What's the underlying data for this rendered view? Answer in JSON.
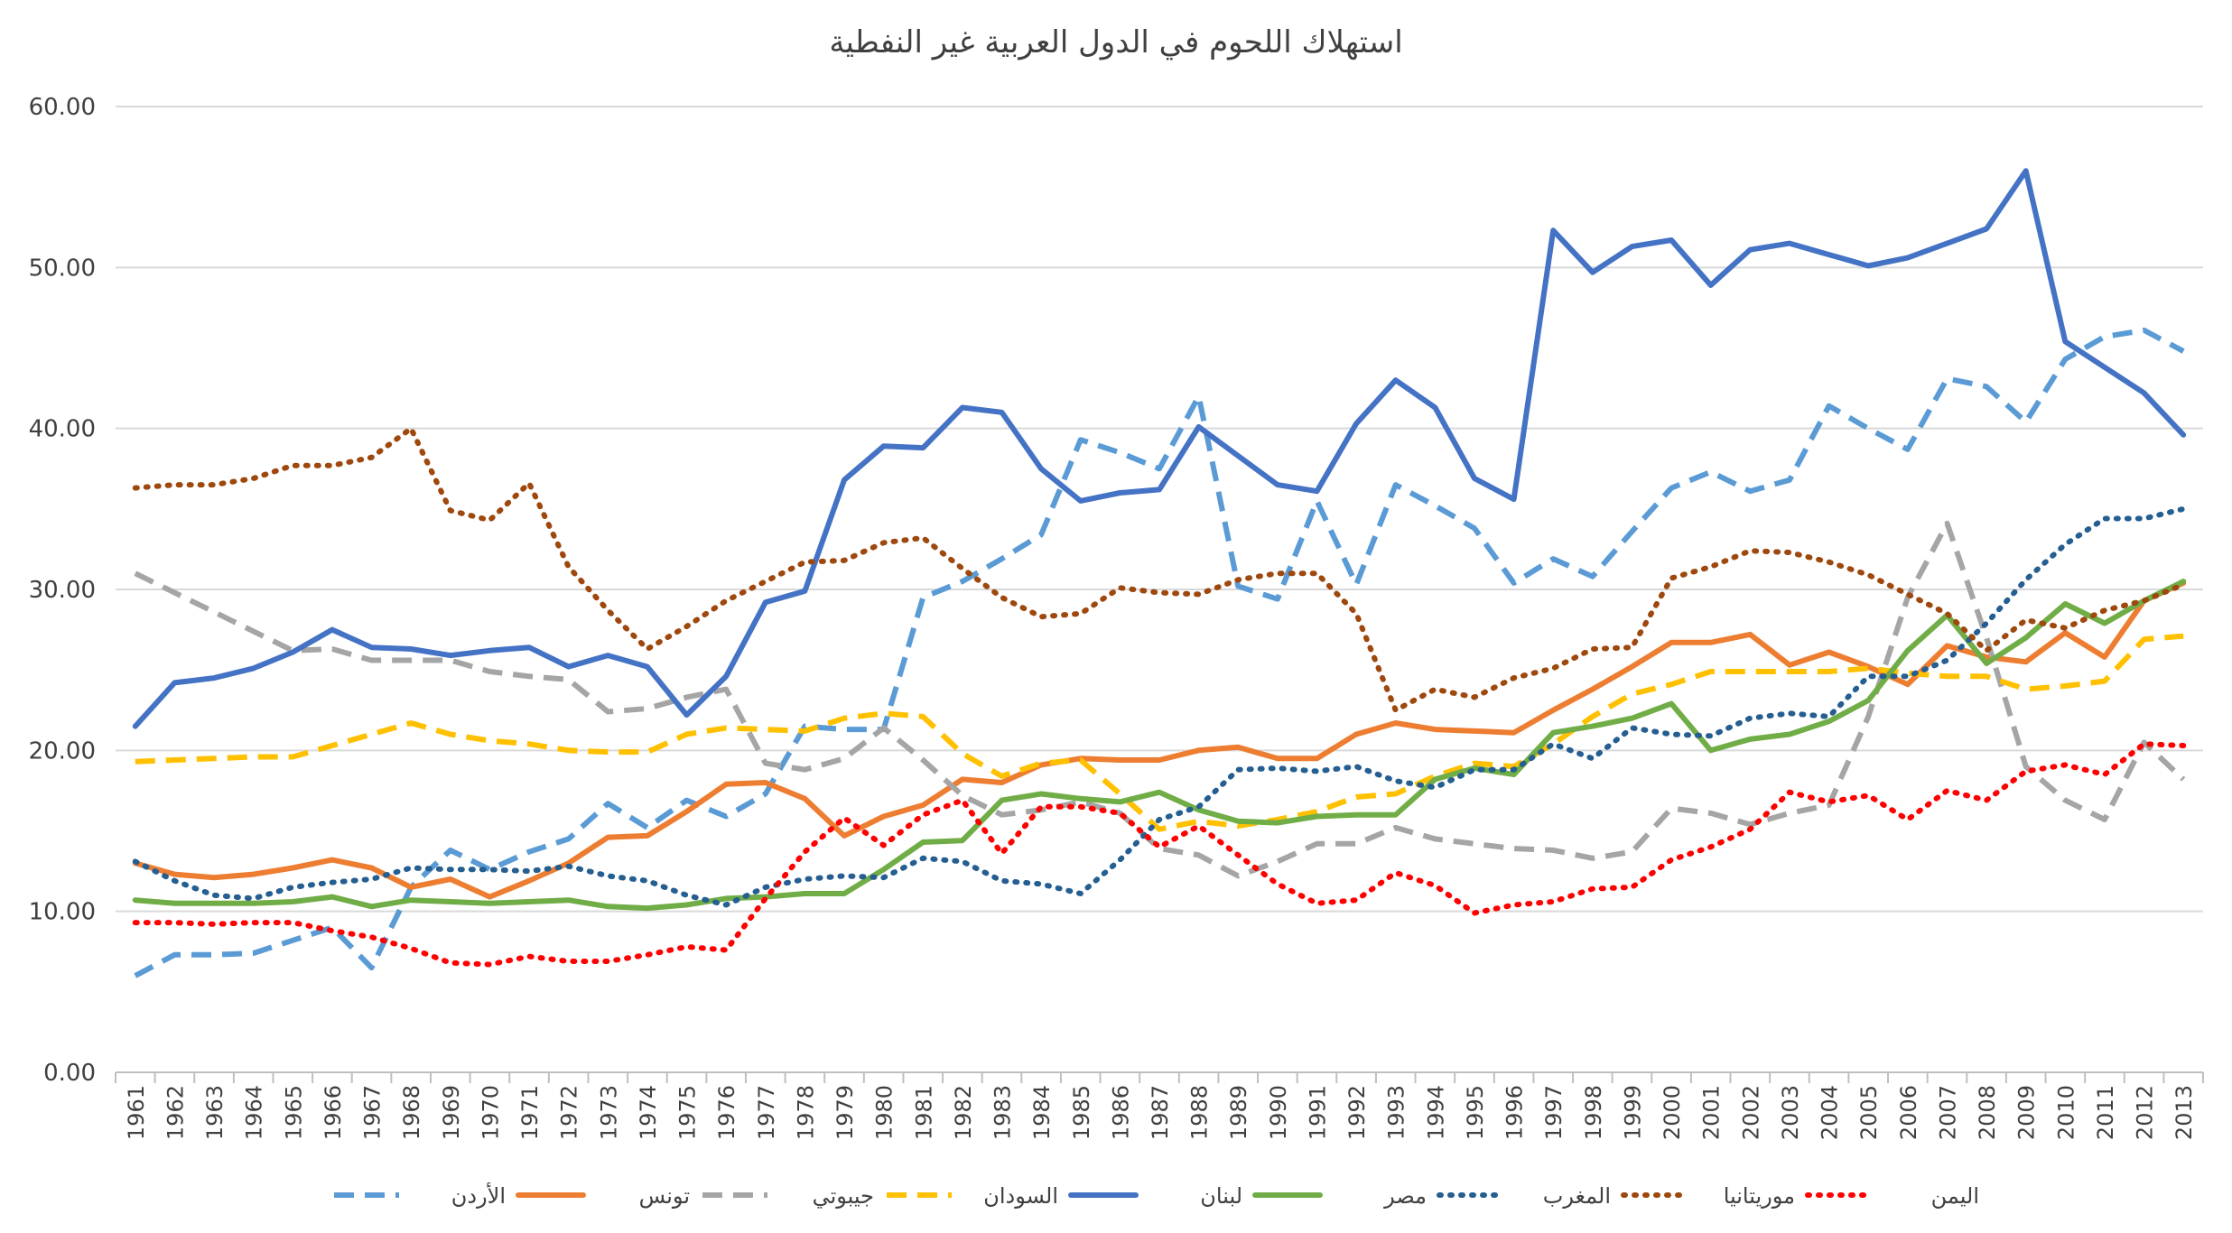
{
  "chart_data": {
    "type": "line",
    "title": "استهلاك اللحوم في الدول العربية غير النفطية",
    "xlabel": "",
    "ylabel": "",
    "ylim": [
      0,
      60
    ],
    "yticks": [
      "0.00",
      "10.00",
      "20.00",
      "30.00",
      "40.00",
      "50.00",
      "60.00"
    ],
    "grid": true,
    "legend_position": "bottom",
    "x": [
      "1961",
      "1962",
      "1963",
      "1964",
      "1965",
      "1966",
      "1967",
      "1968",
      "1969",
      "1970",
      "1971",
      "1972",
      "1973",
      "1974",
      "1975",
      "1976",
      "1977",
      "1978",
      "1979",
      "1980",
      "1981",
      "1982",
      "1983",
      "1984",
      "1985",
      "1986",
      "1987",
      "1988",
      "1989",
      "1990",
      "1991",
      "1992",
      "1993",
      "1994",
      "1995",
      "1996",
      "1997",
      "1998",
      "1999",
      "2000",
      "2001",
      "2002",
      "2003",
      "2004",
      "2005",
      "2006",
      "2007",
      "2008",
      "2009",
      "2010",
      "2011",
      "2012",
      "2013"
    ],
    "series": [
      {
        "name": "الأردن",
        "color": "#5B9BD5",
        "dash": "long-dash",
        "values": [
          6.0,
          7.3,
          7.3,
          7.4,
          8.2,
          9.0,
          6.5,
          11.5,
          13.8,
          12.6,
          13.7,
          14.5,
          16.7,
          15.2,
          16.9,
          15.9,
          17.3,
          21.5,
          21.3,
          21.3,
          29.5,
          30.5,
          31.9,
          33.4,
          39.3,
          38.5,
          37.5,
          42.0,
          30.2,
          29.4,
          35.5,
          30.3,
          36.5,
          35.2,
          33.8,
          30.4,
          31.9,
          30.8,
          33.6,
          36.3,
          37.3,
          36.1,
          36.8,
          41.4,
          40.0,
          38.7,
          43.1,
          42.6,
          40.4,
          44.3,
          45.7,
          46.1,
          44.8
        ]
      },
      {
        "name": "تونس",
        "color": "#ED7D31",
        "dash": "solid",
        "values": [
          13.0,
          12.3,
          12.1,
          12.3,
          12.7,
          13.2,
          12.7,
          11.5,
          12.0,
          10.9,
          11.9,
          13.0,
          14.6,
          14.7,
          16.2,
          17.9,
          18.0,
          17.0,
          14.7,
          15.9,
          16.6,
          18.2,
          18.0,
          19.1,
          19.5,
          19.4,
          19.4,
          20.0,
          20.2,
          19.5,
          19.5,
          21.0,
          21.7,
          21.3,
          21.2,
          21.1,
          22.5,
          23.8,
          25.2,
          26.7,
          26.7,
          27.2,
          25.3,
          26.1,
          25.2,
          24.1,
          26.5,
          25.8,
          25.5,
          27.3,
          25.8,
          29.3,
          30.4
        ]
      },
      {
        "name": "جيبوتي",
        "color": "#A5A5A5",
        "dash": "long-dash",
        "values": [
          31.0,
          29.8,
          28.6,
          27.4,
          26.2,
          26.3,
          25.6,
          25.6,
          25.6,
          24.9,
          24.6,
          24.4,
          22.4,
          22.6,
          23.3,
          23.8,
          19.2,
          18.8,
          19.5,
          21.4,
          19.4,
          17.2,
          16.0,
          16.3,
          16.8,
          16.1,
          13.9,
          13.5,
          12.2,
          13.1,
          14.2,
          14.2,
          15.2,
          14.5,
          14.2,
          13.9,
          13.8,
          13.3,
          13.7,
          16.4,
          16.1,
          15.4,
          16.1,
          16.6,
          22.1,
          29.5,
          34.1,
          27.0,
          19.0,
          16.9,
          15.7,
          20.5,
          18.2
        ]
      },
      {
        "name": "السودان",
        "color": "#FFC000",
        "dash": "long-dash",
        "values": [
          19.3,
          19.4,
          19.5,
          19.6,
          19.6,
          20.3,
          21.0,
          21.7,
          21.0,
          20.6,
          20.4,
          20.0,
          19.9,
          19.9,
          21.0,
          21.4,
          21.3,
          21.2,
          22.0,
          22.3,
          22.1,
          19.8,
          18.4,
          19.2,
          19.4,
          17.3,
          15.1,
          15.6,
          15.3,
          15.7,
          16.2,
          17.1,
          17.3,
          18.4,
          19.2,
          19.0,
          20.4,
          22.1,
          23.5,
          24.1,
          24.9,
          24.9,
          24.9,
          24.9,
          25.1,
          24.8,
          24.6,
          24.6,
          23.8,
          24.0,
          24.3,
          26.9,
          27.1
        ]
      },
      {
        "name": "لبنان",
        "color": "#4472C4",
        "dash": "solid",
        "values": [
          21.5,
          24.2,
          24.5,
          25.1,
          26.1,
          27.5,
          26.4,
          26.3,
          25.9,
          26.2,
          26.4,
          25.2,
          25.9,
          25.2,
          22.2,
          24.6,
          29.2,
          29.9,
          36.8,
          38.9,
          38.8,
          41.3,
          41.0,
          37.5,
          35.5,
          36.0,
          36.2,
          40.1,
          38.3,
          36.5,
          36.1,
          40.3,
          43.0,
          41.3,
          36.9,
          35.6,
          52.3,
          49.7,
          51.3,
          51.7,
          48.9,
          51.1,
          51.5,
          50.8,
          50.1,
          50.6,
          51.5,
          52.4,
          56.0,
          45.4,
          43.8,
          42.2,
          39.6
        ]
      },
      {
        "name": "مصر",
        "color": "#70AD47",
        "dash": "solid",
        "values": [
          10.7,
          10.5,
          10.5,
          10.5,
          10.6,
          10.9,
          10.3,
          10.7,
          10.6,
          10.5,
          10.6,
          10.7,
          10.3,
          10.2,
          10.4,
          10.8,
          10.9,
          11.1,
          11.1,
          12.6,
          14.3,
          14.4,
          16.9,
          17.3,
          17.0,
          16.8,
          17.4,
          16.3,
          15.6,
          15.5,
          15.9,
          16.0,
          16.0,
          18.2,
          18.9,
          18.5,
          21.1,
          21.5,
          22.0,
          22.9,
          20.0,
          20.7,
          21.0,
          21.8,
          23.1,
          26.2,
          28.4,
          25.4,
          27.0,
          29.1,
          27.9,
          29.3,
          30.5
        ]
      },
      {
        "name": "المغرب",
        "color": "#255E91",
        "dash": "dot",
        "values": [
          13.1,
          11.9,
          11.0,
          10.8,
          11.5,
          11.8,
          12.0,
          12.7,
          12.6,
          12.6,
          12.5,
          12.8,
          12.2,
          11.9,
          11.0,
          10.4,
          11.5,
          12.0,
          12.2,
          12.1,
          13.3,
          13.1,
          11.9,
          11.7,
          11.1,
          13.2,
          15.7,
          16.5,
          18.8,
          18.9,
          18.7,
          19.0,
          18.1,
          17.7,
          18.8,
          18.8,
          20.4,
          19.5,
          21.4,
          21.0,
          20.9,
          22.0,
          22.3,
          22.1,
          24.6,
          24.6,
          25.6,
          27.9,
          30.6,
          32.8,
          34.4,
          34.4,
          35.0
        ]
      },
      {
        "name": "موريتانيا",
        "color": "#9E480E",
        "dash": "dot",
        "values": [
          36.3,
          36.5,
          36.5,
          36.9,
          37.7,
          37.7,
          38.2,
          40.0,
          34.9,
          34.3,
          36.6,
          31.4,
          28.7,
          26.3,
          27.7,
          29.3,
          30.5,
          31.7,
          31.8,
          32.9,
          33.2,
          31.3,
          29.5,
          28.3,
          28.5,
          30.1,
          29.8,
          29.7,
          30.6,
          31.0,
          31.0,
          28.5,
          22.5,
          23.8,
          23.3,
          24.5,
          25.1,
          26.3,
          26.4,
          30.7,
          31.4,
          32.4,
          32.3,
          31.7,
          30.9,
          29.7,
          28.5,
          26.2,
          28.1,
          27.6,
          28.7,
          29.3,
          30.3
        ]
      },
      {
        "name": "اليمن",
        "color": "#FF0000",
        "dash": "dot",
        "values": [
          9.3,
          9.3,
          9.2,
          9.3,
          9.3,
          8.8,
          8.4,
          7.7,
          6.8,
          6.7,
          7.2,
          6.9,
          6.9,
          7.3,
          7.8,
          7.6,
          10.8,
          13.7,
          15.8,
          14.1,
          16.0,
          16.9,
          13.6,
          16.5,
          16.5,
          16.1,
          14.0,
          15.3,
          13.5,
          11.7,
          10.5,
          10.7,
          12.4,
          11.6,
          9.9,
          10.4,
          10.6,
          11.4,
          11.5,
          13.2,
          14.0,
          15.1,
          17.4,
          16.8,
          17.2,
          15.7,
          17.5,
          16.9,
          18.7,
          19.1,
          18.5,
          20.4,
          20.3
        ]
      }
    ]
  }
}
